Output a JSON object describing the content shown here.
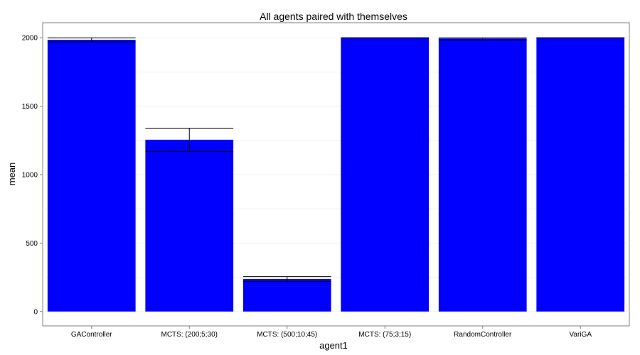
{
  "chart_data": {
    "type": "bar",
    "title": "All agents paired with themselves",
    "xlabel": "agent1",
    "ylabel": "mean",
    "categories": [
      "GAController",
      "MCTS: (200;5;30)",
      "MCTS: (500;10;45)",
      "MCTS: (75;3;15)",
      "RandomController",
      "VariGA"
    ],
    "values": [
      1985,
      1255,
      238,
      2000,
      1995,
      2000
    ],
    "error_bars": [
      {
        "low": 1970,
        "high": 2000
      },
      {
        "low": 1170,
        "high": 1340
      },
      {
        "low": 220,
        "high": 255
      },
      {
        "low": 2000,
        "high": 2000
      },
      {
        "low": 1985,
        "high": 2000
      },
      {
        "low": 2000,
        "high": 2000
      }
    ],
    "yticks": [
      0,
      500,
      1000,
      1500,
      2000
    ],
    "ylim": [
      -105,
      2110
    ],
    "bar_color": "#0000ff",
    "grid": true
  }
}
